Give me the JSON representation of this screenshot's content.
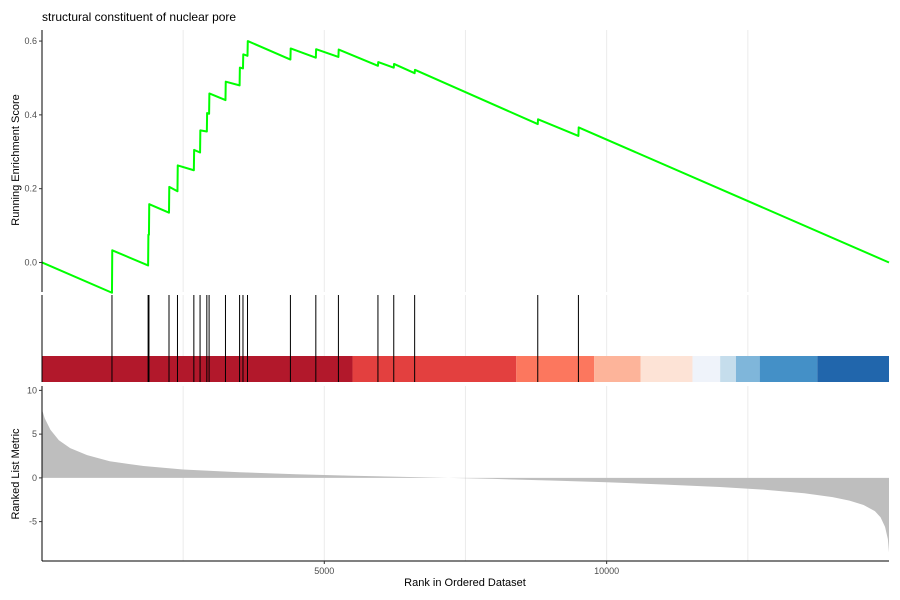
{
  "chart_data": {
    "type": "line",
    "title": "structural constituent of nuclear pore",
    "xlabel": "Rank in Ordered Dataset",
    "xlim": [
      1,
      15000
    ],
    "x_ticks": [
      5000,
      10000
    ],
    "grid": "vertical major gridlines",
    "series_color": "#00FF00",
    "running_enrichment": {
      "ylabel": "Running Enrichment Score",
      "ylim": [
        -0.08,
        0.63
      ],
      "y_ticks": [
        0.0,
        0.2,
        0.4,
        0.6
      ],
      "y_tick_labels": [
        "0.0",
        "0.2",
        "0.4",
        "0.6"
      ],
      "x": [
        1,
        1240,
        1245,
        1880,
        1885,
        1895,
        1900,
        2250,
        2255,
        2400,
        2405,
        2690,
        2695,
        2800,
        2805,
        2920,
        2925,
        2960,
        2965,
        3250,
        3255,
        3500,
        3505,
        3560,
        3565,
        3640,
        3645,
        4400,
        4405,
        4850,
        4855,
        5250,
        5255,
        5950,
        5955,
        6230,
        6235,
        6600,
        6605,
        8780,
        8785,
        9500,
        9505,
        15000
      ],
      "y": [
        0.0,
        -0.082,
        0.033,
        -0.008,
        0.075,
        0.075,
        0.158,
        0.135,
        0.205,
        0.193,
        0.263,
        0.25,
        0.305,
        0.298,
        0.358,
        0.355,
        0.405,
        0.403,
        0.458,
        0.44,
        0.49,
        0.48,
        0.528,
        0.526,
        0.564,
        0.56,
        0.6,
        0.55,
        0.58,
        0.555,
        0.578,
        0.557,
        0.577,
        0.533,
        0.543,
        0.528,
        0.538,
        0.513,
        0.522,
        0.375,
        0.388,
        0.343,
        0.366,
        0.0
      ]
    },
    "hits": [
      1240,
      1880,
      1895,
      2250,
      2400,
      2690,
      2800,
      2920,
      2960,
      3250,
      3500,
      3560,
      3640,
      4400,
      4850,
      5250,
      5950,
      6230,
      6600,
      8780,
      9500
    ],
    "heat_segments": [
      {
        "start": 1,
        "end": 5500,
        "color": "#B2182B"
      },
      {
        "start": 5500,
        "end": 8400,
        "color": "#E3403F"
      },
      {
        "start": 8400,
        "end": 9780,
        "color": "#FC775E"
      },
      {
        "start": 9780,
        "end": 10600,
        "color": "#FDB49A"
      },
      {
        "start": 10600,
        "end": 11520,
        "color": "#FDE3D6"
      },
      {
        "start": 11520,
        "end": 12010,
        "color": "#EFF3FA"
      },
      {
        "start": 12010,
        "end": 12290,
        "color": "#C5DDEC"
      },
      {
        "start": 12290,
        "end": 12710,
        "color": "#7FB6DA"
      },
      {
        "start": 12710,
        "end": 13730,
        "color": "#4490C7"
      },
      {
        "start": 13730,
        "end": 15000,
        "color": "#2166AC"
      }
    ],
    "ranked_metric": {
      "ylabel": "Ranked List Metric",
      "ylim": [
        -9.5,
        10.5
      ],
      "y_ticks": [
        -5,
        0,
        5,
        10
      ],
      "y_tick_labels": [
        "-5",
        "0",
        "5",
        "10"
      ],
      "fill_color": "#BEBEBE",
      "x": [
        1,
        50,
        150,
        300,
        500,
        800,
        1200,
        1800,
        2500,
        3500,
        4500,
        5500,
        6500,
        7200,
        8000,
        9000,
        10000,
        11000,
        12000,
        12800,
        13500,
        14000,
        14300,
        14550,
        14750,
        14850,
        14930,
        14980,
        15000
      ],
      "y": [
        7.8,
        6.8,
        5.5,
        4.3,
        3.4,
        2.6,
        1.9,
        1.35,
        0.95,
        0.65,
        0.42,
        0.25,
        0.1,
        0.0,
        -0.12,
        -0.3,
        -0.5,
        -0.75,
        -1.05,
        -1.35,
        -1.75,
        -2.2,
        -2.6,
        -3.1,
        -3.8,
        -4.5,
        -5.6,
        -7.0,
        -8.5
      ]
    }
  }
}
